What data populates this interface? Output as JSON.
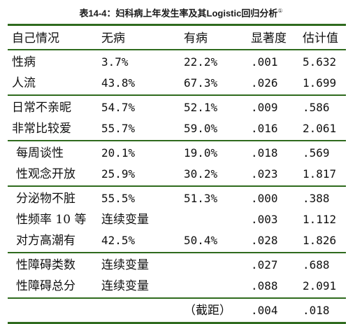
{
  "caption": {
    "title": "表14-4：妇科病上年发生率及其Logistic回归分析",
    "note_mark": "①"
  },
  "colors": {
    "rule": "#2f6b1e",
    "text": "#111111"
  },
  "table": {
    "headers": [
      "自己情况",
      "无病",
      "有病",
      "显著度",
      "估计值"
    ],
    "groups": [
      {
        "rows": [
          {
            "label": "性病",
            "no": "3.7%",
            "yes": "22.2%",
            "sig": ".001",
            "est": "5.632"
          },
          {
            "label": "人流",
            "no": "43.8%",
            "yes": "67.3%",
            "sig": ".026",
            "est": "1.699"
          }
        ]
      },
      {
        "rows": [
          {
            "label": "日常不亲昵",
            "no": "54.7%",
            "yes": "52.1%",
            "sig": ".009",
            "est": ".586"
          },
          {
            "label": "非常比较爱",
            "no": "55.7%",
            "yes": "59.0%",
            "sig": ".016",
            "est": "2.061"
          }
        ]
      },
      {
        "rows": [
          {
            "label": "每周谈性",
            "no": "20.1%",
            "yes": "19.0%",
            "sig": ".018",
            "est": ".569"
          },
          {
            "label": "性观念开放",
            "no": "25.9%",
            "yes": "30.2%",
            "sig": ".023",
            "est": "1.817"
          }
        ]
      },
      {
        "rows": [
          {
            "label": "分泌物不脏",
            "no": "55.5%",
            "yes": "51.3%",
            "sig": ".000",
            "est": ".388"
          },
          {
            "label": "性频率 10 等",
            "no": "连续变量",
            "yes": "",
            "sig": ".003",
            "est": "1.112"
          },
          {
            "label": "对方高潮有",
            "no": "42.5%",
            "yes": "50.4%",
            "sig": ".028",
            "est": "1.826"
          }
        ]
      },
      {
        "rows": [
          {
            "label": "性障碍类数",
            "no": "连续变量",
            "yes": "",
            "sig": ".027",
            "est": ".688"
          },
          {
            "label": "性障碍总分",
            "no": "连续变量",
            "yes": "",
            "sig": ".088",
            "est": "2.091"
          }
        ]
      },
      {
        "rows": [
          {
            "label": "",
            "no": "",
            "yes": "（截距）",
            "sig": ".004",
            "est": ".018"
          }
        ]
      }
    ]
  }
}
